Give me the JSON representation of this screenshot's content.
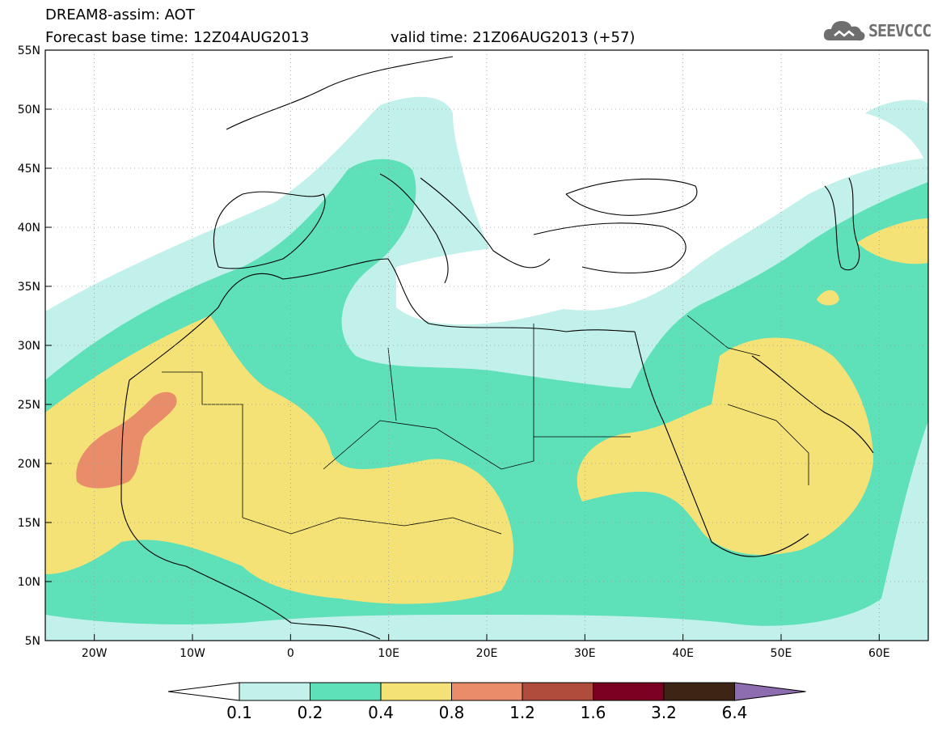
{
  "header": {
    "line1": "DREAM8-assim: AOT",
    "line2_base": "Forecast base time: 12Z04AUG2013",
    "line2_valid": "valid time: 21Z06AUG2013 (+57)"
  },
  "logo": {
    "text": "SEEVCCC",
    "icon": "cloud-logo-icon"
  },
  "map": {
    "lat_labels": [
      "55N",
      "50N",
      "45N",
      "40N",
      "35N",
      "30N",
      "25N",
      "20N",
      "15N",
      "10N",
      "5N"
    ],
    "lon_labels": [
      "20W",
      "10W",
      "0",
      "10E",
      "20E",
      "30E",
      "40E",
      "50E",
      "60E"
    ],
    "lat_range": [
      5,
      55
    ],
    "lon_range": [
      -25,
      65
    ],
    "grid": "dotted"
  },
  "legend": {
    "values": [
      "0.1",
      "0.2",
      "0.4",
      "0.8",
      "1.2",
      "1.6",
      "3.2",
      "6.4"
    ],
    "colors": [
      "#c2f0ea",
      "#5ee0b8",
      "#f5e276",
      "#e98c6a",
      "#b04c3c",
      "#7a0020",
      "#3e2414",
      "#8e6cb0"
    ]
  },
  "chart_data": {
    "type": "heatmap",
    "title": "DREAM8-assim: AOT",
    "lat_range": [
      5,
      55
    ],
    "lon_range": [
      -25,
      65
    ],
    "levels": [
      0.1,
      0.2,
      0.4,
      0.8,
      1.2,
      1.6,
      3.2,
      6.4
    ]
  }
}
